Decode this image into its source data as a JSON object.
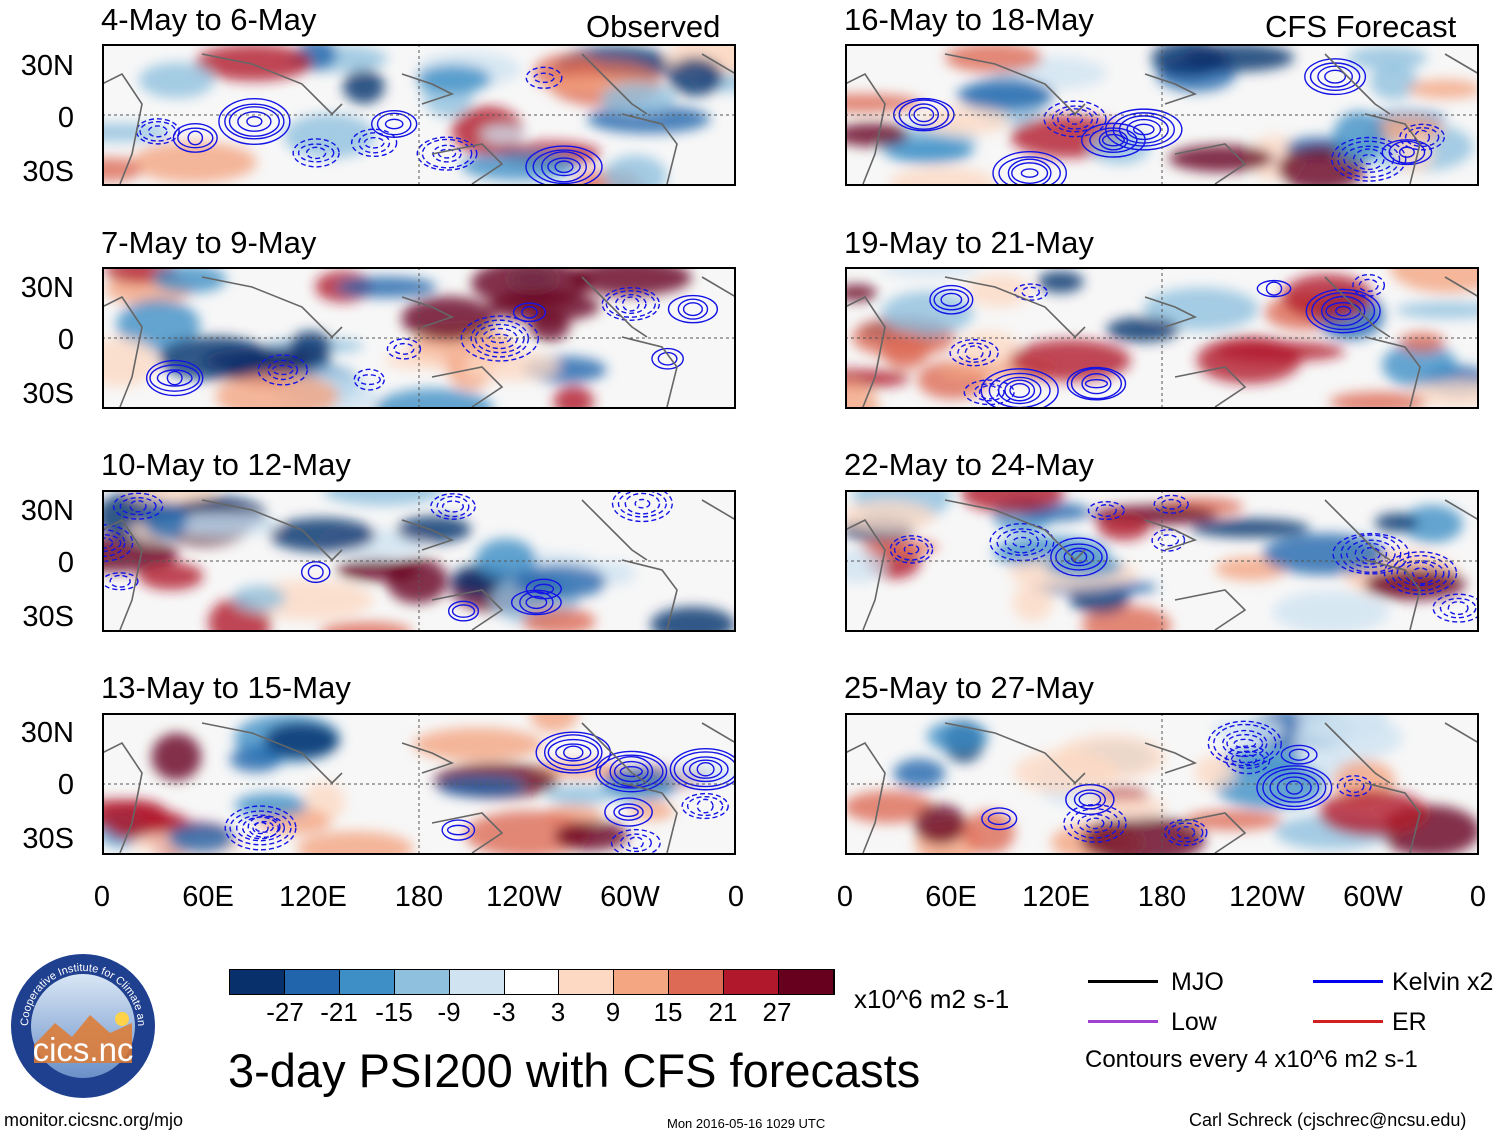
{
  "observed_label": "Observed",
  "forecast_label": "CFS Forecast",
  "lat_labels": [
    "30N",
    "0",
    "30S"
  ],
  "lon_labels": [
    "0",
    "60E",
    "120E",
    "180",
    "120W",
    "60W",
    "0"
  ],
  "panels_observed": [
    {
      "title": "4-May to 6-May"
    },
    {
      "title": "7-May to 9-May"
    },
    {
      "title": "10-May to 12-May"
    },
    {
      "title": "13-May to 15-May"
    }
  ],
  "panels_forecast": [
    {
      "title": "16-May to 18-May"
    },
    {
      "title": "19-May to 21-May"
    },
    {
      "title": "22-May to 24-May"
    },
    {
      "title": "25-May to 27-May"
    }
  ],
  "colorbar": {
    "colors": [
      "#08306b",
      "#2166ac",
      "#3d8fc6",
      "#8fc0de",
      "#cfe3f1",
      "#ffffff",
      "#fdd9c4",
      "#f4a582",
      "#dd6a55",
      "#b2182b",
      "#67001f"
    ],
    "ticks": [
      "-27",
      "-21",
      "-15",
      "-9",
      "-3",
      "3",
      "9",
      "15",
      "21",
      "27"
    ],
    "units": "x10^6 m2 s-1"
  },
  "legend": {
    "items": [
      {
        "label": "MJO",
        "color": "#000000"
      },
      {
        "label": "Kelvin x2",
        "color": "#0000ee"
      },
      {
        "label": "Low",
        "color": "#a040d0"
      },
      {
        "label": "ER",
        "color": "#d02020"
      }
    ],
    "note": "Contours every 4 x10^6 m2 s-1"
  },
  "main_title": "3-day PSI200 with CFS forecasts",
  "logo_text": "cics.nc",
  "logo_ring_text": "Cooperative Institute for Climate and Satellites",
  "footer": {
    "url": "monitor.cicsnc.org/mjo",
    "timestamp": "Mon 2016-05-16 1029 UTC",
    "credit": "Carl Schreck (cjschrec@ncsu.edu)"
  }
}
